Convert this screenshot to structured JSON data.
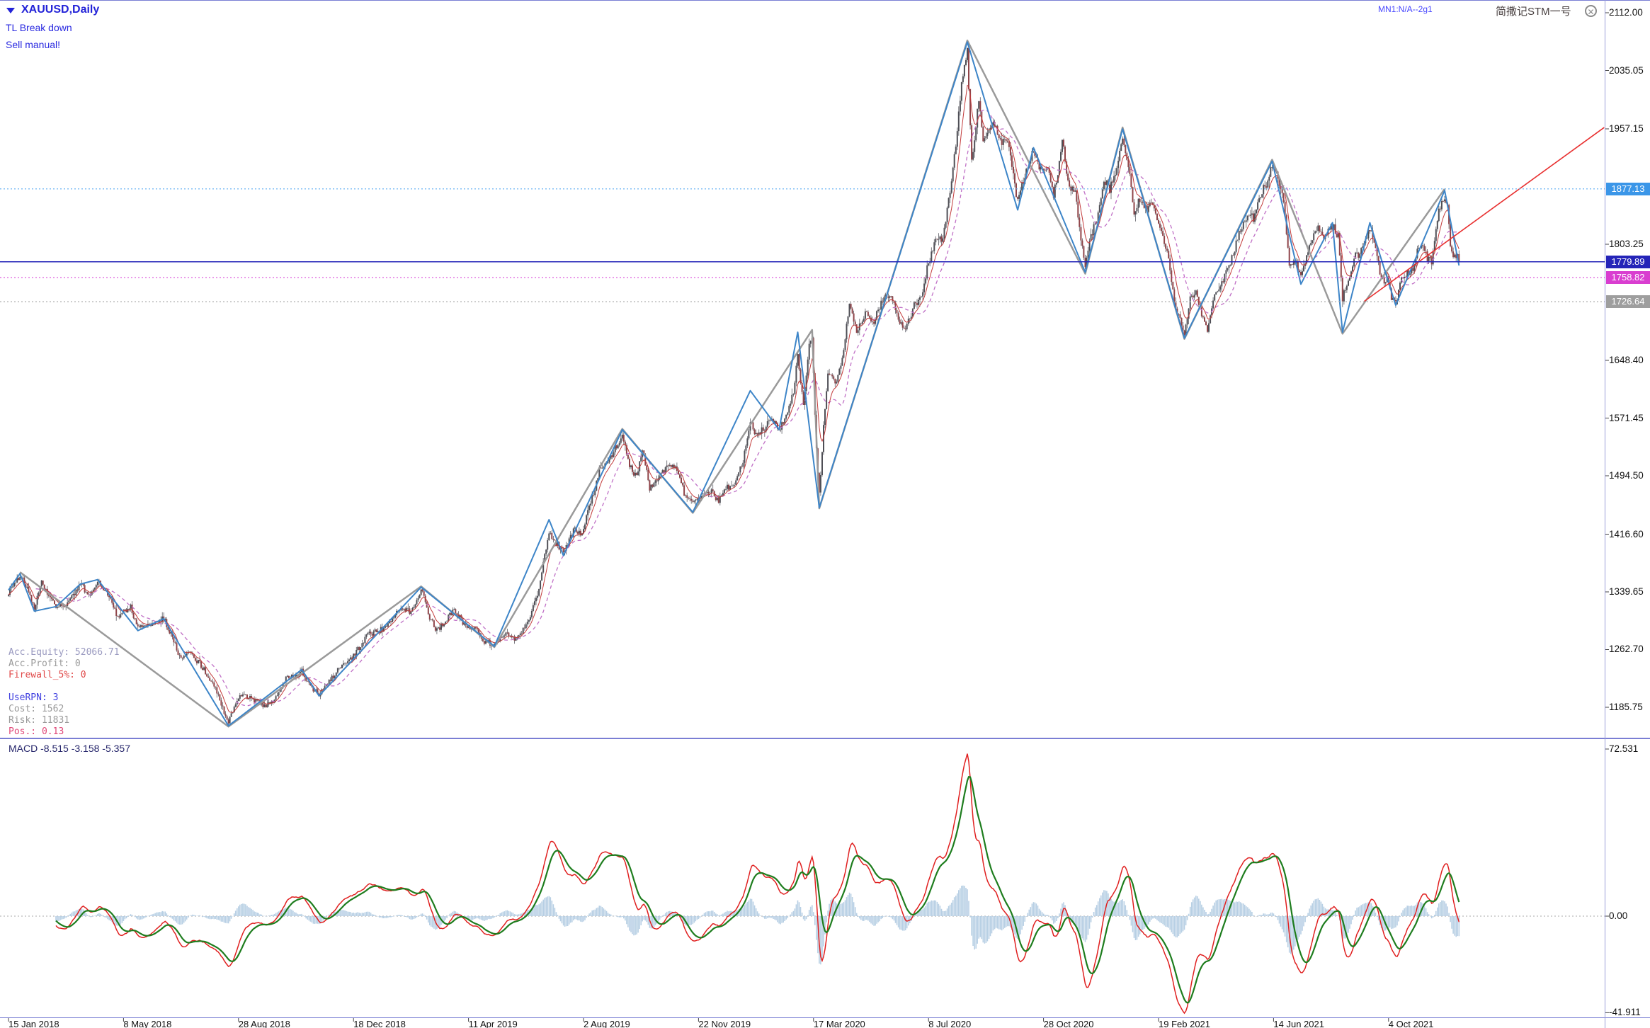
{
  "header": {
    "symbol_label": "XAUUSD,Daily",
    "note1": "TL Break down",
    "note2": "Sell manual!",
    "top_right_small": "MN1:N/A--2g1",
    "top_right_title": "简撒记STM一号"
  },
  "info_panel": {
    "lines": [
      {
        "text": "Acc.Equity: 52066.71",
        "color": "#9a9ac0"
      },
      {
        "text": "Acc.Profit: 0",
        "color": "#9a9a9a"
      },
      {
        "text": "Firewall_5%: 0",
        "color": "#e04848"
      },
      {
        "text": "",
        "color": "#9a9a9a"
      },
      {
        "text": "UseRPN: 3",
        "color": "#4040e0"
      },
      {
        "text": "Cost: 1562",
        "color": "#9a9a9a"
      },
      {
        "text": "Risk: 11831",
        "color": "#9a9a9a"
      },
      {
        "text": "Pos.: 0.13",
        "color": "#e04878"
      }
    ]
  },
  "chart_data": {
    "type": "candlestick",
    "symbol": "XAUUSD",
    "timeframe": "Daily",
    "ylim": [
      1150,
      2129
    ],
    "days_total": 1010,
    "price_axis_ticks": [
      {
        "text": "2112.00",
        "price": 2112.0
      },
      {
        "text": "2035.05",
        "price": 2035.05
      },
      {
        "text": "1957.15",
        "price": 1957.15
      },
      {
        "text": "1803.25",
        "price": 1803.25
      },
      {
        "text": "1648.40",
        "price": 1648.4
      },
      {
        "text": "1571.45",
        "price": 1571.45
      },
      {
        "text": "1494.50",
        "price": 1494.5
      },
      {
        "text": "1416.60",
        "price": 1416.6
      },
      {
        "text": "1339.65",
        "price": 1339.65
      },
      {
        "text": "1262.70",
        "price": 1262.7
      },
      {
        "text": "1185.75",
        "price": 1185.75
      }
    ],
    "time_axis_labels": [
      {
        "text": "15 Jan 2018",
        "day": 0
      },
      {
        "text": "8 May 2018",
        "day": 80
      },
      {
        "text": "28 Aug 2018",
        "day": 160
      },
      {
        "text": "18 Dec 2018",
        "day": 240
      },
      {
        "text": "11 Apr 2019",
        "day": 320
      },
      {
        "text": "2 Aug 2019",
        "day": 400
      },
      {
        "text": "22 Nov 2019",
        "day": 480
      },
      {
        "text": "17 Mar 2020",
        "day": 560
      },
      {
        "text": "8 Jul 2020",
        "day": 640
      },
      {
        "text": "28 Oct 2020",
        "day": 720
      },
      {
        "text": "19 Feb 2021",
        "day": 800
      },
      {
        "text": "14 Jun 2021",
        "day": 880
      },
      {
        "text": "4 Oct 2021",
        "day": 960
      }
    ],
    "hlines": [
      {
        "text": "1877.13",
        "price": 1877.13,
        "line_color": "#5aabf2",
        "badge_bg": "#3b96e8",
        "style": "dotted"
      },
      {
        "text": "1779.89",
        "price": 1779.89,
        "line_color": "#2525b8",
        "badge_bg": "#2424b8",
        "style": "solid"
      },
      {
        "text": "1758.82",
        "price": 1758.82,
        "line_color": "#de5ade",
        "badge_bg": "#d93ed0",
        "style": "dotted"
      },
      {
        "text": "1726.64",
        "price": 1726.64,
        "line_color": "#ababab",
        "badge_bg": "#9e9e9e",
        "style": "dotted"
      }
    ],
    "price_path_anchors": [
      [
        0,
        1339
      ],
      [
        8,
        1362
      ],
      [
        13,
        1345
      ],
      [
        18,
        1317
      ],
      [
        23,
        1352
      ],
      [
        33,
        1318
      ],
      [
        42,
        1325
      ],
      [
        50,
        1350
      ],
      [
        57,
        1333
      ],
      [
        62,
        1353
      ],
      [
        70,
        1335
      ],
      [
        76,
        1306
      ],
      [
        85,
        1320
      ],
      [
        90,
        1291
      ],
      [
        100,
        1298
      ],
      [
        108,
        1304
      ],
      [
        114,
        1279
      ],
      [
        119,
        1252
      ],
      [
        125,
        1260
      ],
      [
        133,
        1244
      ],
      [
        143,
        1216
      ],
      [
        153,
        1165
      ],
      [
        158,
        1190
      ],
      [
        161,
        1204
      ],
      [
        170,
        1196
      ],
      [
        178,
        1188
      ],
      [
        184,
        1192
      ],
      [
        193,
        1224
      ],
      [
        200,
        1228
      ],
      [
        204,
        1234
      ],
      [
        210,
        1214
      ],
      [
        216,
        1202
      ],
      [
        224,
        1222
      ],
      [
        231,
        1240
      ],
      [
        240,
        1254
      ],
      [
        249,
        1281
      ],
      [
        255,
        1286
      ],
      [
        262,
        1292
      ],
      [
        268,
        1308
      ],
      [
        273,
        1321
      ],
      [
        280,
        1312
      ],
      [
        287,
        1344
      ],
      [
        293,
        1306
      ],
      [
        298,
        1288
      ],
      [
        305,
        1302
      ],
      [
        310,
        1318
      ],
      [
        318,
        1292
      ],
      [
        325,
        1290
      ],
      [
        331,
        1274
      ],
      [
        338,
        1268
      ],
      [
        345,
        1284
      ],
      [
        352,
        1278
      ],
      [
        358,
        1288
      ],
      [
        364,
        1312
      ],
      [
        369,
        1342
      ],
      [
        373,
        1390
      ],
      [
        376,
        1420
      ],
      [
        380,
        1408
      ],
      [
        386,
        1392
      ],
      [
        394,
        1424
      ],
      [
        399,
        1414
      ],
      [
        403,
        1446
      ],
      [
        408,
        1478
      ],
      [
        411,
        1502
      ],
      [
        417,
        1512
      ],
      [
        421,
        1528
      ],
      [
        427,
        1550
      ],
      [
        432,
        1508
      ],
      [
        437,
        1492
      ],
      [
        441,
        1530
      ],
      [
        446,
        1478
      ],
      [
        452,
        1492
      ],
      [
        458,
        1504
      ],
      [
        464,
        1506
      ],
      [
        470,
        1472
      ],
      [
        476,
        1456
      ],
      [
        482,
        1464
      ],
      [
        488,
        1474
      ],
      [
        494,
        1462
      ],
      [
        500,
        1478
      ],
      [
        506,
        1484
      ],
      [
        511,
        1516
      ],
      [
        516,
        1566
      ],
      [
        520,
        1548
      ],
      [
        526,
        1558
      ],
      [
        531,
        1570
      ],
      [
        536,
        1556
      ],
      [
        541,
        1574
      ],
      [
        546,
        1604
      ],
      [
        549,
        1658
      ],
      [
        553,
        1586
      ],
      [
        557,
        1672
      ],
      [
        559,
        1678
      ],
      [
        562,
        1530
      ],
      [
        564,
        1470
      ],
      [
        567,
        1558
      ],
      [
        570,
        1630
      ],
      [
        575,
        1618
      ],
      [
        580,
        1648
      ],
      [
        585,
        1726
      ],
      [
        590,
        1686
      ],
      [
        596,
        1712
      ],
      [
        602,
        1702
      ],
      [
        609,
        1734
      ],
      [
        615,
        1728
      ],
      [
        623,
        1686
      ],
      [
        630,
        1722
      ],
      [
        635,
        1730
      ],
      [
        640,
        1780
      ],
      [
        645,
        1808
      ],
      [
        650,
        1810
      ],
      [
        655,
        1872
      ],
      [
        660,
        1954
      ],
      [
        663,
        2022
      ],
      [
        667,
        2061
      ],
      [
        670,
        1912
      ],
      [
        675,
        1998
      ],
      [
        678,
        1942
      ],
      [
        681,
        1952
      ],
      [
        685,
        1972
      ],
      [
        690,
        1938
      ],
      [
        695,
        1942
      ],
      [
        702,
        1860
      ],
      [
        707,
        1896
      ],
      [
        713,
        1928
      ],
      [
        718,
        1902
      ],
      [
        723,
        1908
      ],
      [
        727,
        1870
      ],
      [
        730,
        1892
      ],
      [
        733,
        1948
      ],
      [
        737,
        1884
      ],
      [
        742,
        1872
      ],
      [
        746,
        1810
      ],
      [
        749,
        1772
      ],
      [
        753,
        1814
      ],
      [
        757,
        1836
      ],
      [
        762,
        1892
      ],
      [
        766,
        1876
      ],
      [
        770,
        1898
      ],
      [
        775,
        1946
      ],
      [
        779,
        1908
      ],
      [
        783,
        1842
      ],
      [
        786,
        1864
      ],
      [
        791,
        1850
      ],
      [
        796,
        1856
      ],
      [
        801,
        1822
      ],
      [
        807,
        1786
      ],
      [
        811,
        1728
      ],
      [
        815,
        1702
      ],
      [
        818,
        1684
      ],
      [
        822,
        1730
      ],
      [
        826,
        1740
      ],
      [
        830,
        1712
      ],
      [
        834,
        1688
      ],
      [
        838,
        1730
      ],
      [
        842,
        1744
      ],
      [
        846,
        1762
      ],
      [
        851,
        1786
      ],
      [
        856,
        1816
      ],
      [
        862,
        1842
      ],
      [
        866,
        1838
      ],
      [
        870,
        1868
      ],
      [
        875,
        1884
      ],
      [
        879,
        1906
      ],
      [
        883,
        1892
      ],
      [
        887,
        1862
      ],
      [
        891,
        1776
      ],
      [
        895,
        1782
      ],
      [
        899,
        1762
      ],
      [
        903,
        1786
      ],
      [
        907,
        1810
      ],
      [
        911,
        1830
      ],
      [
        915,
        1806
      ],
      [
        918,
        1826
      ],
      [
        921,
        1828
      ],
      [
        925,
        1814
      ],
      [
        928,
        1732
      ],
      [
        932,
        1752
      ],
      [
        936,
        1786
      ],
      [
        940,
        1792
      ],
      [
        944,
        1812
      ],
      [
        947,
        1826
      ],
      [
        951,
        1794
      ],
      [
        955,
        1754
      ],
      [
        959,
        1756
      ],
      [
        962,
        1734
      ],
      [
        965,
        1724
      ],
      [
        969,
        1758
      ],
      [
        973,
        1766
      ],
      [
        977,
        1768
      ],
      [
        980,
        1794
      ],
      [
        983,
        1806
      ],
      [
        987,
        1784
      ],
      [
        990,
        1778
      ],
      [
        993,
        1824
      ],
      [
        995,
        1848
      ],
      [
        999,
        1866
      ],
      [
        1001,
        1856
      ],
      [
        1003,
        1804
      ],
      [
        1005,
        1788
      ],
      [
        1007,
        1790
      ],
      [
        1009,
        1781
      ]
    ],
    "zigzag_gray": [
      [
        8,
        1366
      ],
      [
        153,
        1160
      ],
      [
        287,
        1347
      ],
      [
        338,
        1266
      ],
      [
        427,
        1557
      ],
      [
        476,
        1445
      ],
      [
        559,
        1689
      ],
      [
        564,
        1451
      ],
      [
        667,
        2075
      ],
      [
        749,
        1764
      ],
      [
        775,
        1959
      ],
      [
        818,
        1677
      ],
      [
        879,
        1916
      ],
      [
        928,
        1684
      ],
      [
        999,
        1877
      ]
    ],
    "zigzag_blue": [
      [
        0,
        1342
      ],
      [
        8,
        1364
      ],
      [
        18,
        1314
      ],
      [
        33,
        1320
      ],
      [
        50,
        1350
      ],
      [
        62,
        1356
      ],
      [
        90,
        1288
      ],
      [
        108,
        1304
      ],
      [
        153,
        1161
      ],
      [
        204,
        1236
      ],
      [
        216,
        1201
      ],
      [
        287,
        1346
      ],
      [
        338,
        1267
      ],
      [
        376,
        1436
      ],
      [
        386,
        1388
      ],
      [
        427,
        1556
      ],
      [
        476,
        1446
      ],
      [
        516,
        1608
      ],
      [
        536,
        1556
      ],
      [
        549,
        1686
      ],
      [
        564,
        1452
      ],
      [
        667,
        2073
      ],
      [
        702,
        1849
      ],
      [
        713,
        1932
      ],
      [
        749,
        1766
      ],
      [
        775,
        1957
      ],
      [
        818,
        1678
      ],
      [
        879,
        1914
      ],
      [
        899,
        1750
      ],
      [
        921,
        1832
      ],
      [
        928,
        1686
      ],
      [
        947,
        1832
      ],
      [
        965,
        1722
      ],
      [
        999,
        1875
      ],
      [
        1009,
        1775
      ]
    ],
    "trendline_red": {
      "points": [
        [
          943,
          1727
        ],
        [
          1110,
          1959
        ]
      ],
      "color": "#e83030"
    },
    "moving_averages": [
      {
        "period": 20,
        "style": "dashed",
        "color": "#c070c6"
      },
      {
        "period": 8,
        "style": "solid",
        "color": "#c23b3b"
      }
    ],
    "colors": {
      "candle_up": "#4f4f56",
      "candle_down": "#8f4449",
      "wick": "#5c5c63",
      "zigzag_gray": "#9a9a9a",
      "zigzag_blue": "#3d85c8"
    },
    "macd": {
      "label": "MACD -8.515 -3.158 -5.357",
      "values": [
        -8.515,
        -3.158,
        -5.357
      ],
      "axis_ticks": [
        {
          "text": "72.531",
          "value": 72.531
        },
        {
          "text": "0.00",
          "value": 0.0
        },
        {
          "text": "-41.911",
          "value": -41.911
        }
      ],
      "colors": {
        "main": "#e02020",
        "signal": "#1e7d1e",
        "histogram": "#b7cfe4"
      }
    }
  }
}
